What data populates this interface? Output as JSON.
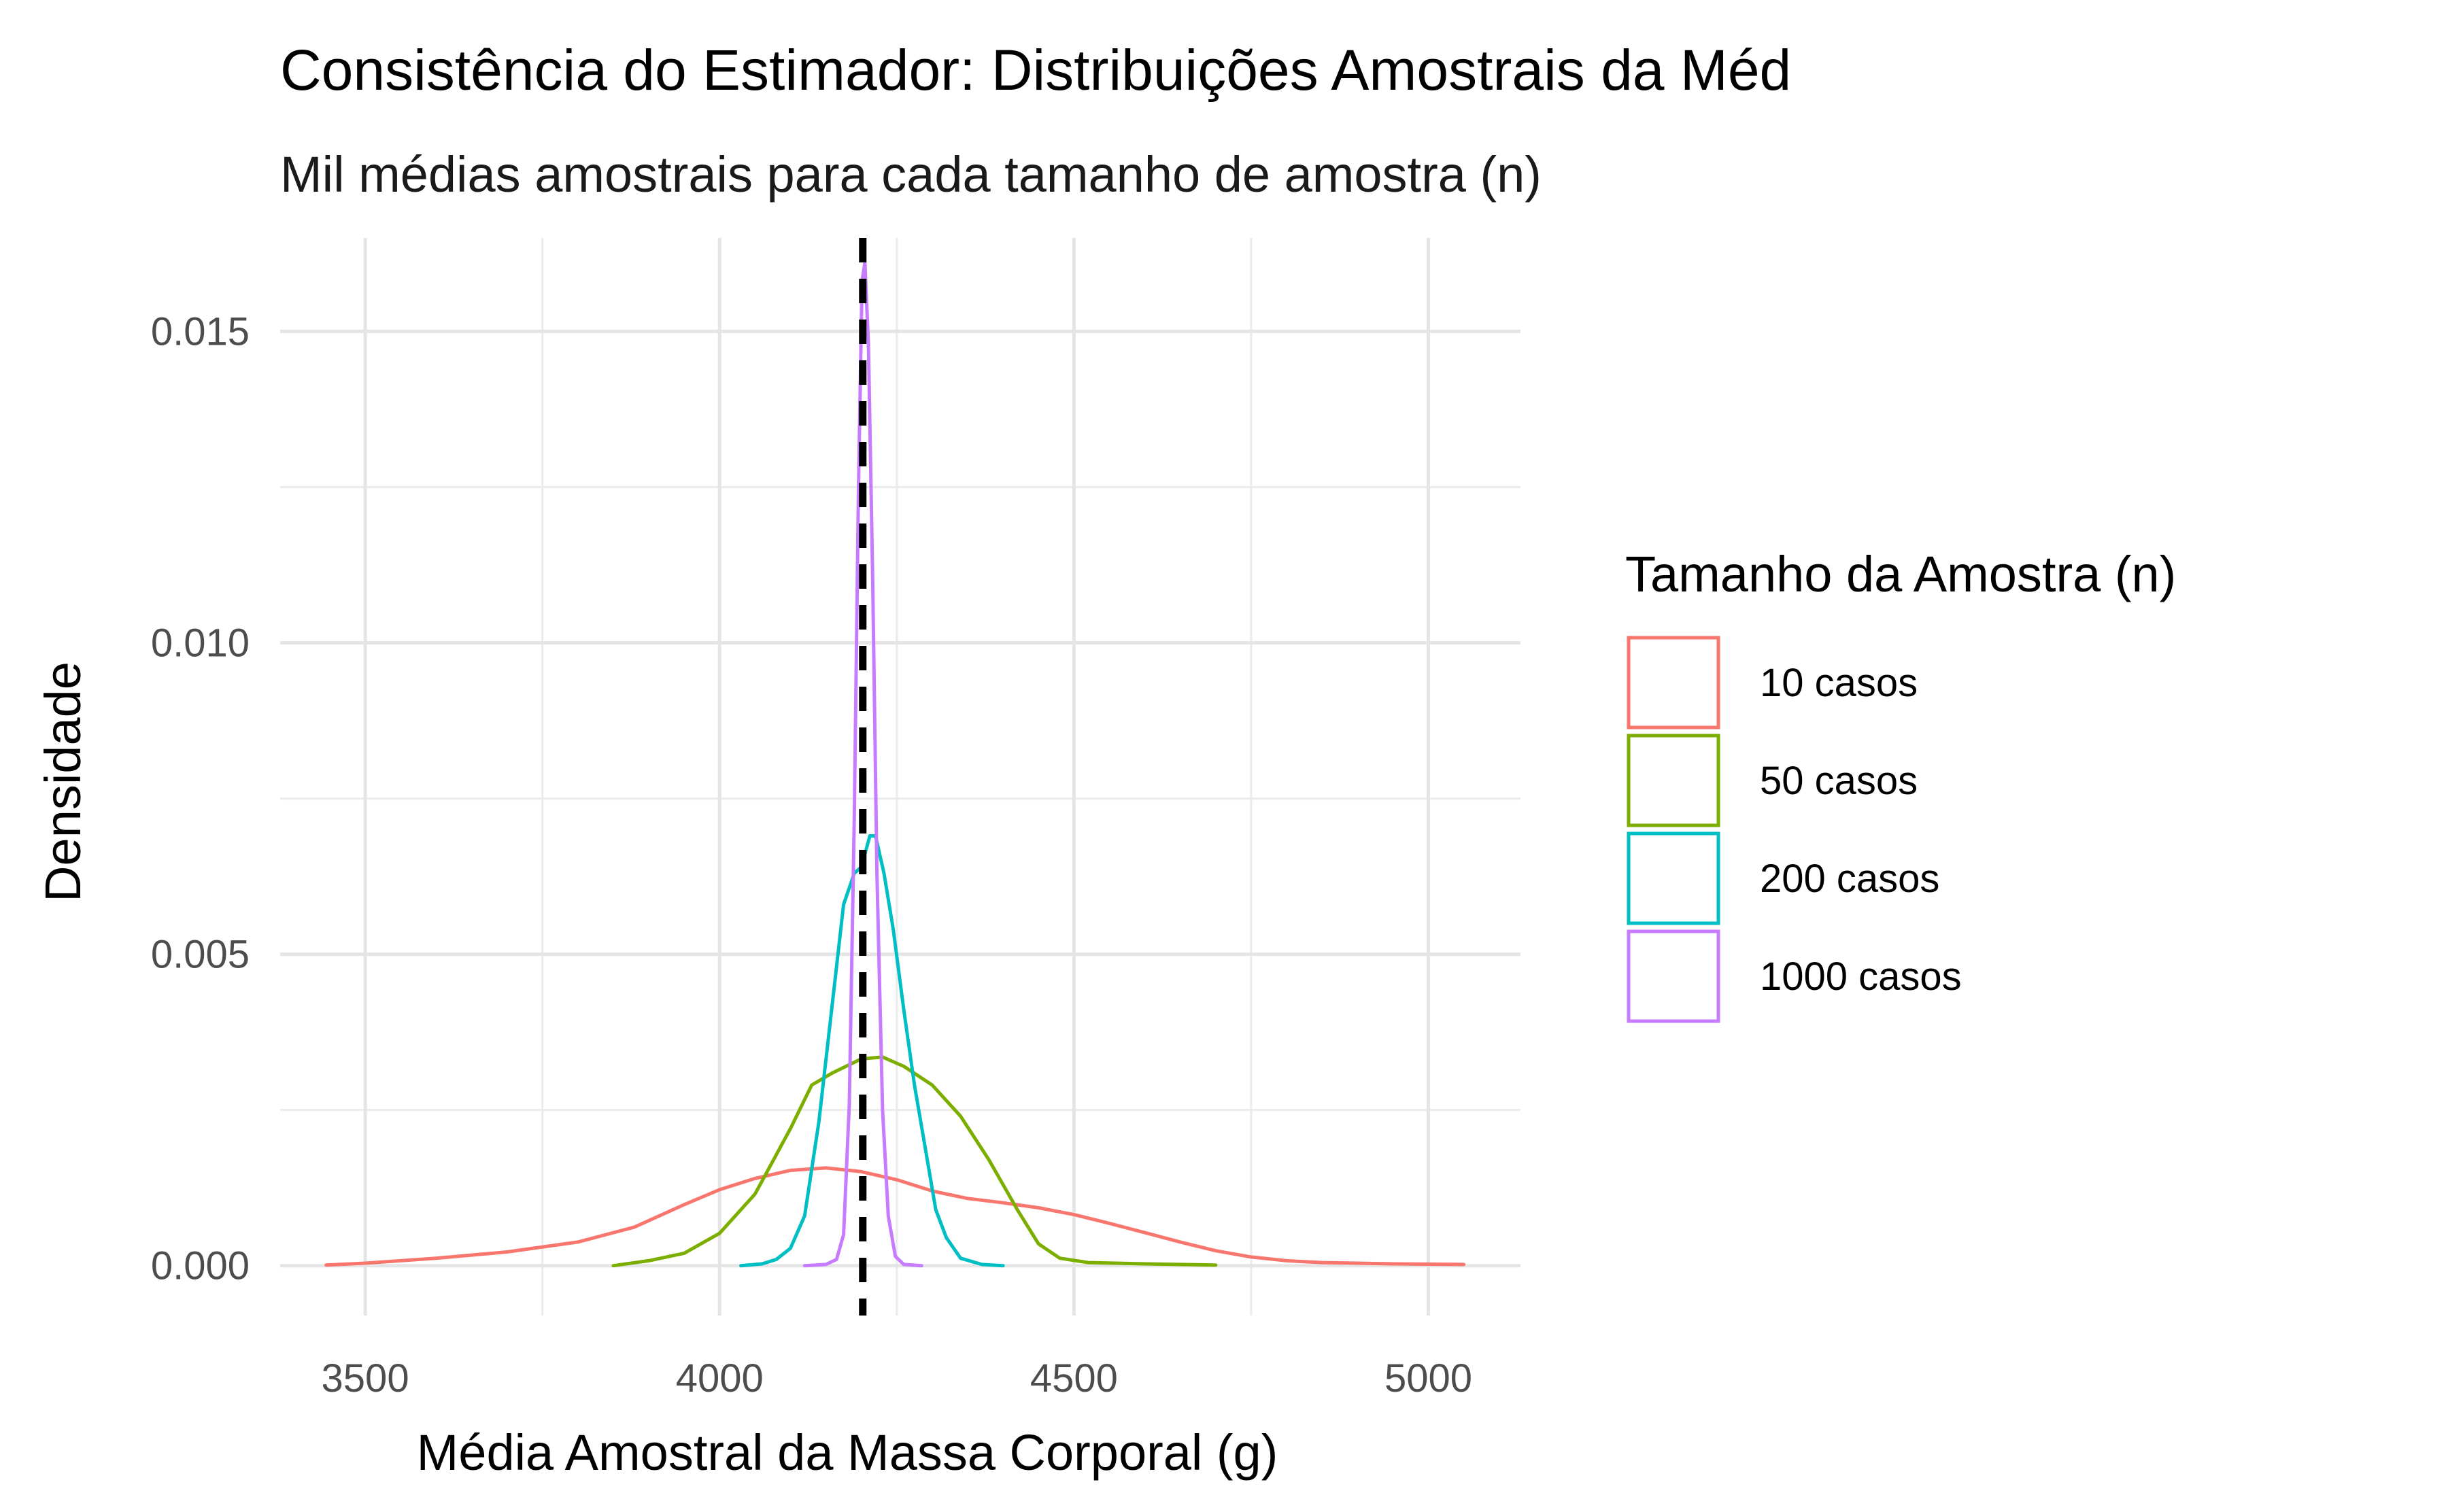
{
  "chart_data": {
    "type": "line",
    "title": "Consistência do Estimador: Distribuições Amostrais da Méd",
    "subtitle": "Mil médias amostrais para cada tamanho de amostra (n)",
    "xlabel": "Média Amostral da Massa Corporal (g)",
    "ylabel": "Densidade",
    "xlim": [
      3380,
      5130
    ],
    "ylim": [
      -0.0008,
      0.0165
    ],
    "x_ticks": [
      3500,
      4000,
      4500,
      5000
    ],
    "x_tick_labels": [
      "3500",
      "4000",
      "4500",
      "5000"
    ],
    "y_ticks": [
      0.0,
      0.005,
      0.01,
      0.015
    ],
    "y_tick_labels": [
      "0.000",
      "0.005",
      "0.010",
      "0.015"
    ],
    "grid": true,
    "reference_line": {
      "x": 4202,
      "style": "dashed",
      "color": "#000000"
    },
    "legend": {
      "title": "Tamanho da Amostra (n)",
      "position": "right"
    },
    "series": [
      {
        "name": "10 casos",
        "color": "#F8766D",
        "points": [
          [
            3445,
            1e-05
          ],
          [
            3500,
            4e-05
          ],
          [
            3600,
            0.00012
          ],
          [
            3700,
            0.00022
          ],
          [
            3800,
            0.00038
          ],
          [
            3880,
            0.00062
          ],
          [
            3950,
            0.00098
          ],
          [
            4000,
            0.00122
          ],
          [
            4050,
            0.0014
          ],
          [
            4100,
            0.00153
          ],
          [
            4150,
            0.00157
          ],
          [
            4200,
            0.00151
          ],
          [
            4250,
            0.00138
          ],
          [
            4300,
            0.0012
          ],
          [
            4350,
            0.00108
          ],
          [
            4400,
            0.00101
          ],
          [
            4450,
            0.00093
          ],
          [
            4500,
            0.00082
          ],
          [
            4550,
            0.00068
          ],
          [
            4600,
            0.00053
          ],
          [
            4650,
            0.00038
          ],
          [
            4700,
            0.00024
          ],
          [
            4750,
            0.00014
          ],
          [
            4800,
            8e-05
          ],
          [
            4850,
            5e-05
          ],
          [
            4900,
            4e-05
          ],
          [
            4950,
            3e-05
          ],
          [
            5050,
            2e-05
          ]
        ]
      },
      {
        "name": "50 casos",
        "color": "#7CAE00",
        "points": [
          [
            3850,
            0.0
          ],
          [
            3900,
            8e-05
          ],
          [
            3950,
            0.0002
          ],
          [
            4000,
            0.00052
          ],
          [
            4050,
            0.00115
          ],
          [
            4100,
            0.0022
          ],
          [
            4130,
            0.0029
          ],
          [
            4160,
            0.0031
          ],
          [
            4200,
            0.00332
          ],
          [
            4230,
            0.00335
          ],
          [
            4260,
            0.0032
          ],
          [
            4300,
            0.0029
          ],
          [
            4340,
            0.0024
          ],
          [
            4380,
            0.0017
          ],
          [
            4420,
            0.0009
          ],
          [
            4450,
            0.00035
          ],
          [
            4480,
            0.00012
          ],
          [
            4520,
            5e-05
          ],
          [
            4600,
            3e-05
          ],
          [
            4700,
            1e-05
          ]
        ]
      },
      {
        "name": "200 casos",
        "color": "#00BFC4",
        "points": [
          [
            4030,
            0.0
          ],
          [
            4060,
            3e-05
          ],
          [
            4080,
            0.0001
          ],
          [
            4100,
            0.00028
          ],
          [
            4120,
            0.0008
          ],
          [
            4140,
            0.0023
          ],
          [
            4160,
            0.0043
          ],
          [
            4175,
            0.0058
          ],
          [
            4190,
            0.0063
          ],
          [
            4200,
            0.0064
          ],
          [
            4212,
            0.0069
          ],
          [
            4220,
            0.0069
          ],
          [
            4232,
            0.0063
          ],
          [
            4245,
            0.0054
          ],
          [
            4260,
            0.0041
          ],
          [
            4275,
            0.0029
          ],
          [
            4290,
            0.0019
          ],
          [
            4305,
            0.0009
          ],
          [
            4320,
            0.00045
          ],
          [
            4340,
            0.00012
          ],
          [
            4370,
            2e-05
          ],
          [
            4400,
            0.0
          ]
        ]
      },
      {
        "name": "1000 casos",
        "color": "#C77CFF",
        "points": [
          [
            4120,
            0.0
          ],
          [
            4150,
            2e-05
          ],
          [
            4165,
            0.0001
          ],
          [
            4175,
            0.0005
          ],
          [
            4183,
            0.0026
          ],
          [
            4190,
            0.0072
          ],
          [
            4196,
            0.0125
          ],
          [
            4201,
            0.0158
          ],
          [
            4205,
            0.0161
          ],
          [
            4210,
            0.0148
          ],
          [
            4216,
            0.011
          ],
          [
            4222,
            0.0063
          ],
          [
            4230,
            0.0025
          ],
          [
            4238,
            0.0008
          ],
          [
            4248,
            0.00015
          ],
          [
            4260,
            2e-05
          ],
          [
            4285,
            0.0
          ]
        ]
      }
    ]
  }
}
